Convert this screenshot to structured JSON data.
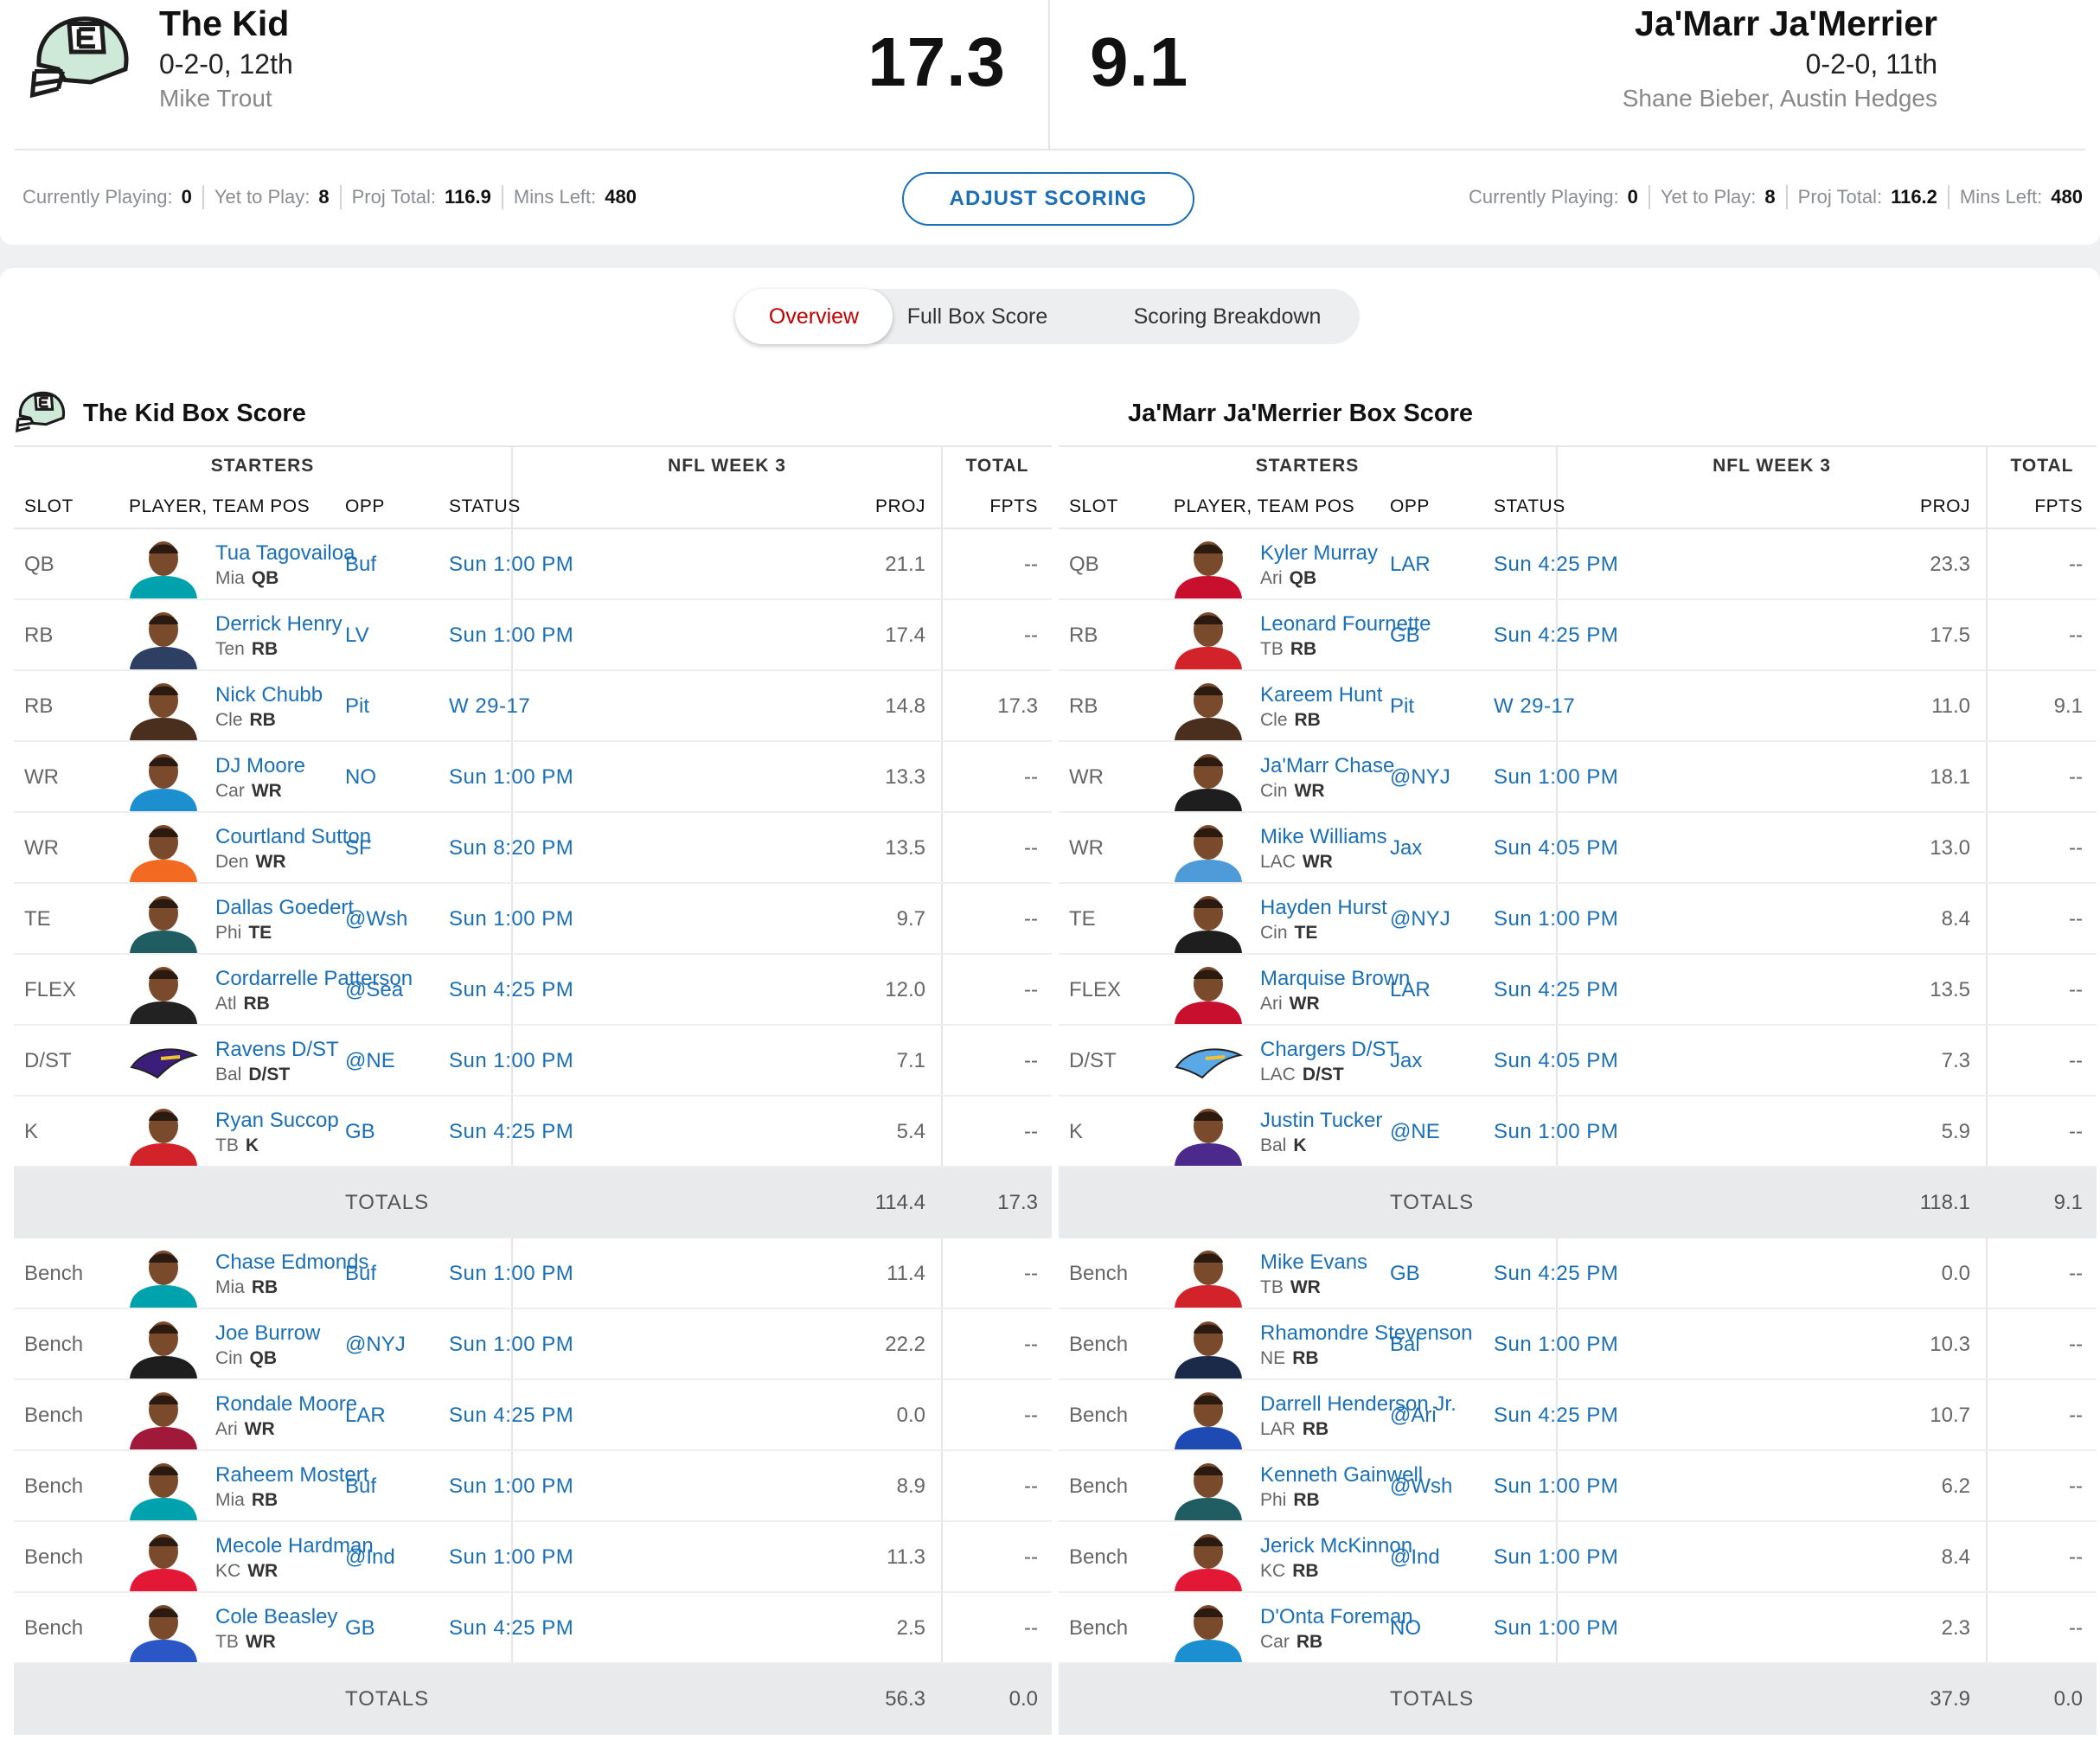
{
  "matchup": {
    "home": {
      "name": "The Kid",
      "record": "0-2-0, 12th",
      "manager": "Mike Trout",
      "score": "17.3",
      "stats": {
        "playing_label": "Currently Playing:",
        "playing": "0",
        "yet_label": "Yet to Play:",
        "yet": "8",
        "proj_label": "Proj Total:",
        "proj": "116.9",
        "mins_label": "Mins Left:",
        "mins": "480"
      }
    },
    "away": {
      "name": "Ja'Marr Ja'Merrier",
      "record": "0-2-0, 11th",
      "manager": "Shane Bieber, Austin Hedges",
      "score": "9.1",
      "stats": {
        "playing_label": "Currently Playing:",
        "playing": "0",
        "yet_label": "Yet to Play:",
        "yet": "8",
        "proj_label": "Proj Total:",
        "proj": "116.2",
        "mins_label": "Mins Left:",
        "mins": "480"
      }
    },
    "adjust_label": "ADJUST SCORING"
  },
  "tabs": [
    "Overview",
    "Full Box Score",
    "Scoring Breakdown"
  ],
  "headers": {
    "starters": "STARTERS",
    "week": "NFL WEEK 3",
    "total": "TOTAL",
    "slot": "SLOT",
    "player": "PLAYER, TEAM POS",
    "opp": "OPP",
    "status": "STATUS",
    "proj": "PROJ",
    "fpts": "FPTS",
    "totals_label": "TOTALS"
  },
  "boxes": [
    {
      "title": "The Kid Box Score",
      "starters": [
        {
          "slot": "QB",
          "name": "Tua Tagovailoa",
          "team": "Mia",
          "pos": "QB",
          "opp": "Buf",
          "status": "Sun 1:00 PM",
          "proj": "21.1",
          "fpts": "--",
          "color": "#00a3ad"
        },
        {
          "slot": "RB",
          "name": "Derrick Henry",
          "team": "Ten",
          "pos": "RB",
          "opp": "LV",
          "status": "Sun 1:00 PM",
          "proj": "17.4",
          "fpts": "--",
          "color": "#2d3f63"
        },
        {
          "slot": "RB",
          "name": "Nick Chubb",
          "team": "Cle",
          "pos": "RB",
          "opp": "Pit",
          "status": "W 29-17",
          "proj": "14.8",
          "fpts": "17.3",
          "color": "#4a2e1e"
        },
        {
          "slot": "WR",
          "name": "DJ Moore",
          "team": "Car",
          "pos": "WR",
          "opp": "NO",
          "status": "Sun 1:00 PM",
          "proj": "13.3",
          "fpts": "--",
          "color": "#1b8fcf"
        },
        {
          "slot": "WR",
          "name": "Courtland Sutton",
          "team": "Den",
          "pos": "WR",
          "opp": "SF",
          "status": "Sun 8:20 PM",
          "proj": "13.5",
          "fpts": "--",
          "color": "#f26a21"
        },
        {
          "slot": "TE",
          "name": "Dallas Goedert",
          "team": "Phi",
          "pos": "TE",
          "opp": "@Wsh",
          "status": "Sun 1:00 PM",
          "proj": "9.7",
          "fpts": "--",
          "color": "#1f5d62"
        },
        {
          "slot": "FLEX",
          "name": "Cordarrelle Patterson",
          "team": "Atl",
          "pos": "RB",
          "opp": "@Sea",
          "status": "Sun 4:25 PM",
          "proj": "12.0",
          "fpts": "--",
          "color": "#222222"
        },
        {
          "slot": "D/ST",
          "name": "Ravens D/ST",
          "team": "Bal",
          "pos": "D/ST",
          "opp": "@NE",
          "status": "Sun 1:00 PM",
          "proj": "7.1",
          "fpts": "--",
          "color": "#3b1e7a",
          "logo": true
        },
        {
          "slot": "K",
          "name": "Ryan Succop",
          "team": "TB",
          "pos": "K",
          "opp": "GB",
          "status": "Sun 4:25 PM",
          "proj": "5.4",
          "fpts": "--",
          "color": "#d2232a"
        }
      ],
      "starter_totals": {
        "proj": "114.4",
        "fpts": "17.3"
      },
      "bench": [
        {
          "slot": "Bench",
          "name": "Chase Edmonds",
          "team": "Mia",
          "pos": "RB",
          "opp": "Buf",
          "status": "Sun 1:00 PM",
          "proj": "11.4",
          "fpts": "--",
          "color": "#00a3ad"
        },
        {
          "slot": "Bench",
          "name": "Joe Burrow",
          "team": "Cin",
          "pos": "QB",
          "opp": "@NYJ",
          "status": "Sun 1:00 PM",
          "proj": "22.2",
          "fpts": "--",
          "color": "#1e1e1e"
        },
        {
          "slot": "Bench",
          "name": "Rondale Moore",
          "team": "Ari",
          "pos": "WR",
          "opp": "LAR",
          "status": "Sun 4:25 PM",
          "proj": "0.0",
          "fpts": "--",
          "color": "#a0183a"
        },
        {
          "slot": "Bench",
          "name": "Raheem Mostert",
          "team": "Mia",
          "pos": "RB",
          "opp": "Buf",
          "status": "Sun 1:00 PM",
          "proj": "8.9",
          "fpts": "--",
          "color": "#00a3ad"
        },
        {
          "slot": "Bench",
          "name": "Mecole Hardman",
          "team": "KC",
          "pos": "WR",
          "opp": "@Ind",
          "status": "Sun 1:00 PM",
          "proj": "11.3",
          "fpts": "--",
          "color": "#e31837"
        },
        {
          "slot": "Bench",
          "name": "Cole Beasley",
          "team": "TB",
          "pos": "WR",
          "opp": "GB",
          "status": "Sun 4:25 PM",
          "proj": "2.5",
          "fpts": "--",
          "color": "#2a56c6"
        }
      ],
      "bench_totals": {
        "proj": "56.3",
        "fpts": "0.0"
      }
    },
    {
      "title": "Ja'Marr Ja'Merrier Box Score",
      "starters": [
        {
          "slot": "QB",
          "name": "Kyler Murray",
          "team": "Ari",
          "pos": "QB",
          "opp": "LAR",
          "status": "Sun 4:25 PM",
          "proj": "23.3",
          "fpts": "--",
          "color": "#c8102e"
        },
        {
          "slot": "RB",
          "name": "Leonard Fournette",
          "team": "TB",
          "pos": "RB",
          "opp": "GB",
          "status": "Sun 4:25 PM",
          "proj": "17.5",
          "fpts": "--",
          "color": "#d2232a"
        },
        {
          "slot": "RB",
          "name": "Kareem Hunt",
          "team": "Cle",
          "pos": "RB",
          "opp": "Pit",
          "status": "W 29-17",
          "proj": "11.0",
          "fpts": "9.1",
          "color": "#4a2e1e"
        },
        {
          "slot": "WR",
          "name": "Ja'Marr Chase",
          "team": "Cin",
          "pos": "WR",
          "opp": "@NYJ",
          "status": "Sun 1:00 PM",
          "proj": "18.1",
          "fpts": "--",
          "color": "#1e1e1e"
        },
        {
          "slot": "WR",
          "name": "Mike Williams",
          "team": "LAC",
          "pos": "WR",
          "opp": "Jax",
          "status": "Sun 4:05 PM",
          "proj": "13.0",
          "fpts": "--",
          "color": "#4f9bd9"
        },
        {
          "slot": "TE",
          "name": "Hayden Hurst",
          "team": "Cin",
          "pos": "TE",
          "opp": "@NYJ",
          "status": "Sun 1:00 PM",
          "proj": "8.4",
          "fpts": "--",
          "color": "#1e1e1e"
        },
        {
          "slot": "FLEX",
          "name": "Marquise Brown",
          "team": "Ari",
          "pos": "WR",
          "opp": "LAR",
          "status": "Sun 4:25 PM",
          "proj": "13.5",
          "fpts": "--",
          "color": "#c8102e"
        },
        {
          "slot": "D/ST",
          "name": "Chargers D/ST",
          "team": "LAC",
          "pos": "D/ST",
          "opp": "Jax",
          "status": "Sun 4:05 PM",
          "proj": "7.3",
          "fpts": "--",
          "color": "#5aa9e6",
          "logo": true
        },
        {
          "slot": "K",
          "name": "Justin Tucker",
          "team": "Bal",
          "pos": "K",
          "opp": "@NE",
          "status": "Sun 1:00 PM",
          "proj": "5.9",
          "fpts": "--",
          "color": "#4b2a8c"
        }
      ],
      "starter_totals": {
        "proj": "118.1",
        "fpts": "9.1"
      },
      "bench": [
        {
          "slot": "Bench",
          "name": "Mike Evans",
          "team": "TB",
          "pos": "WR",
          "opp": "GB",
          "status": "Sun 4:25 PM",
          "proj": "0.0",
          "fpts": "--",
          "color": "#d2232a"
        },
        {
          "slot": "Bench",
          "name": "Rhamondre Stevenson",
          "team": "NE",
          "pos": "RB",
          "opp": "Bal",
          "status": "Sun 1:00 PM",
          "proj": "10.3",
          "fpts": "--",
          "color": "#1c2a4a"
        },
        {
          "slot": "Bench",
          "name": "Darrell Henderson Jr.",
          "team": "LAR",
          "pos": "RB",
          "opp": "@Ari",
          "status": "Sun 4:25 PM",
          "proj": "10.7",
          "fpts": "--",
          "color": "#1e4bb3"
        },
        {
          "slot": "Bench",
          "name": "Kenneth Gainwell",
          "team": "Phi",
          "pos": "RB",
          "opp": "@Wsh",
          "status": "Sun 1:00 PM",
          "proj": "6.2",
          "fpts": "--",
          "color": "#1f5d62"
        },
        {
          "slot": "Bench",
          "name": "Jerick McKinnon",
          "team": "KC",
          "pos": "RB",
          "opp": "@Ind",
          "status": "Sun 1:00 PM",
          "proj": "8.4",
          "fpts": "--",
          "color": "#e31837"
        },
        {
          "slot": "Bench",
          "name": "D'Onta Foreman",
          "team": "Car",
          "pos": "RB",
          "opp": "NO",
          "status": "Sun 1:00 PM",
          "proj": "2.3",
          "fpts": "--",
          "color": "#1b8fcf"
        }
      ],
      "bench_totals": {
        "proj": "37.9",
        "fpts": "0.0"
      }
    }
  ]
}
